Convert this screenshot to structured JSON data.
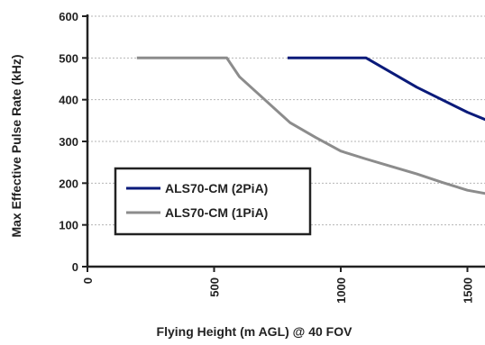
{
  "chart_data": {
    "type": "line",
    "title": "",
    "xlabel": "Flying Height (m AGL) @ 40 FOV",
    "ylabel": "Max Effective Pulse Rate (kHz)",
    "xlim": [
      0,
      1600
    ],
    "ylim": [
      0,
      600
    ],
    "x_ticks": [
      "0",
      "500",
      "1000",
      "1500"
    ],
    "y_ticks": [
      "0",
      "100",
      "200",
      "300",
      "400",
      "500",
      "600"
    ],
    "grid": true,
    "legend_position": "lower-left",
    "series": [
      {
        "name": "ALS70-CM (2PiA)",
        "color": "#0a1a7a",
        "x": [
          790,
          1100,
          1300,
          1500,
          1600
        ],
        "y": [
          500,
          500,
          430,
          370,
          345
        ]
      },
      {
        "name": "ALS70-CM (1PiA)",
        "color": "#8c8c8c",
        "x": [
          195,
          300,
          400,
          550,
          600,
          700,
          800,
          900,
          1000,
          1100,
          1200,
          1300,
          1400,
          1500,
          1600
        ],
        "y": [
          500,
          500,
          500,
          500,
          455,
          400,
          345,
          310,
          277,
          258,
          240,
          222,
          202,
          183,
          172
        ]
      }
    ]
  }
}
